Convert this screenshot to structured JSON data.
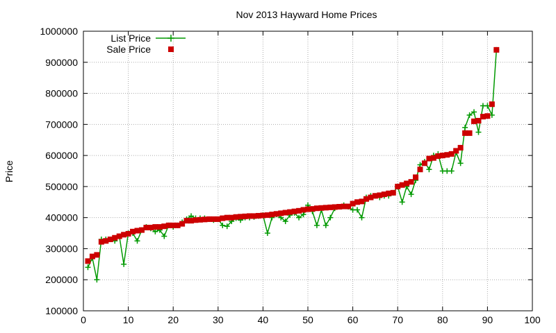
{
  "chart_data": {
    "type": "scatter",
    "title": "Nov 2013 Hayward Home Prices",
    "xlabel": "",
    "ylabel": "Price",
    "xlim": [
      0,
      100
    ],
    "ylim": [
      100000,
      1000000
    ],
    "xticks": [
      "0",
      "10",
      "20",
      "30",
      "40",
      "50",
      "60",
      "70",
      "80",
      "90",
      "100"
    ],
    "yticks": [
      "100000",
      "200000",
      "300000",
      "400000",
      "500000",
      "600000",
      "700000",
      "800000",
      "900000",
      "1000000"
    ],
    "grid": true,
    "legend_position": "top-left",
    "series": [
      {
        "name": "List Price",
        "style": "linespoints",
        "color": "#009900",
        "marker": "plus",
        "x": [
          1,
          2,
          3,
          4,
          5,
          6,
          7,
          8,
          9,
          10,
          11,
          12,
          13,
          14,
          15,
          16,
          17,
          18,
          19,
          20,
          21,
          22,
          23,
          24,
          25,
          26,
          27,
          28,
          29,
          30,
          31,
          32,
          33,
          34,
          35,
          36,
          37,
          38,
          39,
          40,
          41,
          42,
          43,
          44,
          45,
          46,
          47,
          48,
          49,
          50,
          51,
          52,
          53,
          54,
          55,
          56,
          57,
          58,
          59,
          60,
          61,
          62,
          63,
          64,
          65,
          66,
          67,
          68,
          69,
          70,
          71,
          72,
          73,
          74,
          75,
          76,
          77,
          78,
          79,
          80,
          81,
          82,
          83,
          84,
          85,
          86,
          87,
          88,
          89,
          90,
          91,
          92
        ],
        "values": [
          240000,
          270000,
          200000,
          330000,
          330000,
          330000,
          325000,
          340000,
          250000,
          350000,
          350000,
          325000,
          360000,
          370000,
          365000,
          355000,
          360000,
          340000,
          375000,
          370000,
          375000,
          385000,
          395000,
          405000,
          398000,
          398000,
          398000,
          395000,
          392000,
          395000,
          375000,
          372000,
          388000,
          398000,
          392000,
          400000,
          400000,
          402000,
          405000,
          408000,
          350000,
          400000,
          410000,
          400000,
          388000,
          408000,
          415000,
          400000,
          410000,
          440000,
          420000,
          375000,
          425000,
          375000,
          400000,
          430000,
          435000,
          440000,
          435000,
          425000,
          425000,
          400000,
          465000,
          470000,
          470000,
          465000,
          470000,
          470000,
          480000,
          500000,
          450000,
          500000,
          475000,
          520000,
          570000,
          580000,
          555000,
          600000,
          605000,
          550000,
          550000,
          550000,
          610000,
          575000,
          690000,
          730000,
          740000,
          675000,
          760000,
          760000,
          730000,
          940000
        ]
      },
      {
        "name": "Sale Price",
        "style": "points",
        "color": "#cc0000",
        "marker": "square",
        "x": [
          1,
          2,
          3,
          4,
          5,
          6,
          7,
          8,
          9,
          10,
          11,
          12,
          13,
          14,
          15,
          16,
          17,
          18,
          19,
          20,
          21,
          22,
          23,
          24,
          25,
          26,
          27,
          28,
          29,
          30,
          31,
          32,
          33,
          34,
          35,
          36,
          37,
          38,
          39,
          40,
          41,
          42,
          43,
          44,
          45,
          46,
          47,
          48,
          49,
          50,
          51,
          52,
          53,
          54,
          55,
          56,
          57,
          58,
          59,
          60,
          61,
          62,
          63,
          64,
          65,
          66,
          67,
          68,
          69,
          70,
          71,
          72,
          73,
          74,
          75,
          76,
          77,
          78,
          79,
          80,
          81,
          82,
          83,
          84,
          85,
          86,
          87,
          88,
          89,
          90,
          91,
          92
        ],
        "values": [
          260000,
          275000,
          280000,
          322000,
          325000,
          330000,
          335000,
          340000,
          345000,
          348000,
          355000,
          358000,
          360000,
          368000,
          368000,
          370000,
          370000,
          372000,
          375000,
          375000,
          375000,
          380000,
          390000,
          390000,
          392000,
          393000,
          394000,
          395000,
          395000,
          395000,
          398000,
          400000,
          400000,
          402000,
          403000,
          404000,
          405000,
          405000,
          406000,
          407000,
          408000,
          410000,
          412000,
          414000,
          416000,
          418000,
          420000,
          422000,
          425000,
          427000,
          428000,
          430000,
          431000,
          432000,
          433000,
          434000,
          435000,
          436000,
          436000,
          445000,
          450000,
          452000,
          460000,
          465000,
          470000,
          472000,
          475000,
          478000,
          480000,
          500000,
          505000,
          510000,
          515000,
          530000,
          555000,
          575000,
          590000,
          592000,
          598000,
          600000,
          602000,
          605000,
          615000,
          625000,
          672000,
          672000,
          710000,
          712000,
          725000,
          727000,
          765000,
          940000
        ]
      }
    ]
  }
}
